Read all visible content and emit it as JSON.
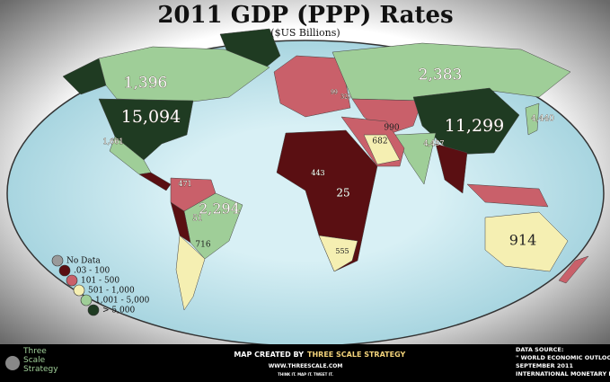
{
  "header": {
    "title": "2011 GDP (PPP) Rates",
    "subtitle": "($US Billions)"
  },
  "map": {
    "labels": [
      "1,396",
      "15,094",
      "1,661",
      "2,383",
      "11,299",
      "4,440",
      "4,457",
      "990",
      "682",
      "443",
      "25",
      "471",
      "2,294",
      "51",
      "716",
      "555",
      "914",
      "99",
      "329"
    ]
  },
  "legend": {
    "items": [
      {
        "label": "No Data",
        "color": "#9a9a9a"
      },
      {
        "label": ".03 - 100",
        "color": "#5a0f12"
      },
      {
        "label": "101 - 500",
        "color": "#c9606a"
      },
      {
        "label": "501 - 1,000",
        "color": "#f5efb2"
      },
      {
        "label": "1,001 - 5,000",
        "color": "#9fce98"
      },
      {
        "label": "> 5,000",
        "color": "#1f3b22"
      }
    ]
  },
  "footer": {
    "logo": [
      "Three",
      "Scale",
      "Strategy"
    ],
    "credit_prefix": "MAP CREATED BY",
    "credit_name": "THREE SCALE STRATEGY",
    "website": "WWW.THREESCALE.COM",
    "tagline": "THINK IT. MAP IT. TWEET IT.",
    "source": [
      "DATA SOURCE:",
      "\" WORLD ECONOMIC OUTLOOK \"",
      "SEPTEMBER 2011",
      "INTERNATIONAL MONETARY FUND"
    ]
  }
}
